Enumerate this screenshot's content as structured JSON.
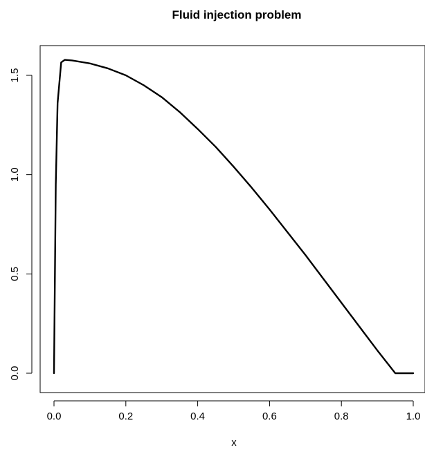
{
  "chart_data": {
    "type": "line",
    "title": "Fluid injection problem",
    "xlabel": "x",
    "ylabel": "",
    "xlim": [
      0,
      1
    ],
    "ylim": [
      0,
      1.6
    ],
    "xticks": [
      0.0,
      0.2,
      0.4,
      0.6,
      0.8,
      1.0
    ],
    "xtick_labels": [
      "0.0",
      "0.2",
      "0.4",
      "0.6",
      "0.8",
      "1.0"
    ],
    "yticks": [
      0.0,
      0.5,
      1.0,
      1.5
    ],
    "ytick_labels": [
      "0.0",
      "0.5",
      "1.0",
      "1.5"
    ],
    "grid": false,
    "series": [
      {
        "color": "#000000",
        "x": [
          0.0,
          0.005,
          0.01,
          0.02,
          0.03,
          0.05,
          0.1,
          0.15,
          0.2,
          0.25,
          0.3,
          0.35,
          0.4,
          0.45,
          0.5,
          0.55,
          0.6,
          0.65,
          0.7,
          0.75,
          0.8,
          0.85,
          0.9,
          0.95,
          1.0
        ],
        "y": [
          0.0,
          0.95,
          1.36,
          1.565,
          1.578,
          1.575,
          1.56,
          1.535,
          1.5,
          1.45,
          1.39,
          1.315,
          1.23,
          1.14,
          1.04,
          0.935,
          0.825,
          0.71,
          0.595,
          0.475,
          0.355,
          0.235,
          0.115,
          0.0,
          0.0
        ]
      }
    ]
  }
}
